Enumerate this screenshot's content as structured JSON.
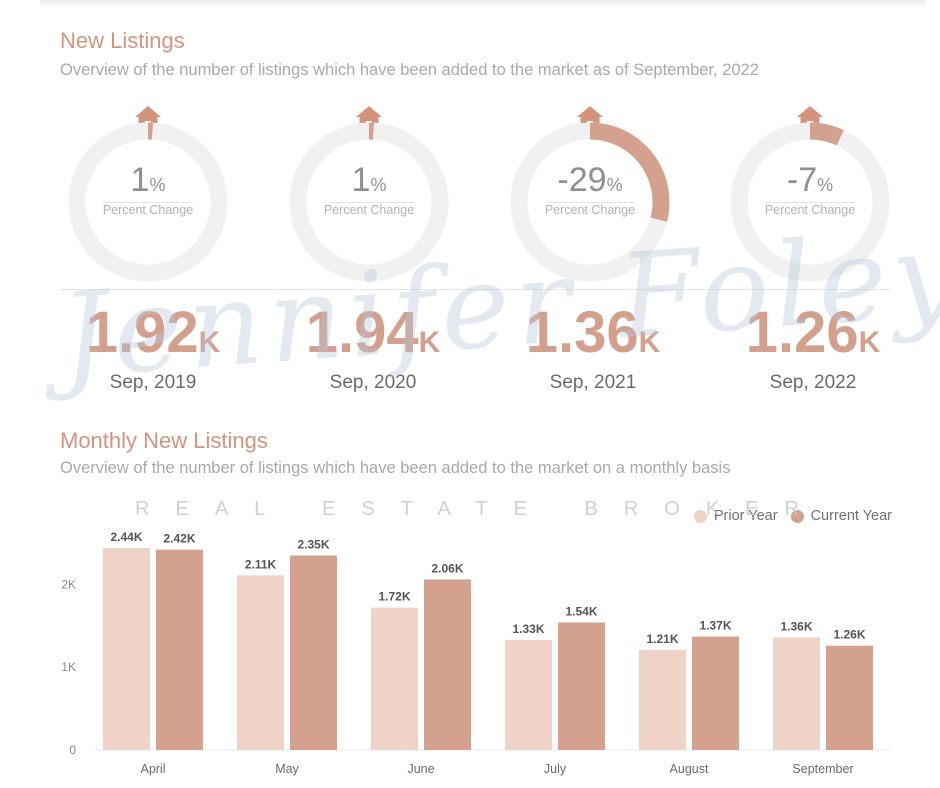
{
  "section1": {
    "title": "New Listings",
    "subtitle": "Overview of the number of listings which have been added to the market as of September, 2022"
  },
  "rings": [
    {
      "value": "1",
      "unit": "%",
      "label": "Percent Change",
      "fraction": 0.01
    },
    {
      "value": "1",
      "unit": "%",
      "label": "Percent Change",
      "fraction": 0.01
    },
    {
      "value": "-29",
      "unit": "%",
      "label": "Percent Change",
      "fraction": 0.29
    },
    {
      "value": "-7",
      "unit": "%",
      "label": "Percent Change",
      "fraction": 0.07
    }
  ],
  "stats": [
    {
      "value": "1.92",
      "unit": "K",
      "date": "Sep, 2019"
    },
    {
      "value": "1.94",
      "unit": "K",
      "date": "Sep, 2020"
    },
    {
      "value": "1.36",
      "unit": "K",
      "date": "Sep, 2021"
    },
    {
      "value": "1.26",
      "unit": "K",
      "date": "Sep, 2022"
    }
  ],
  "watermark": {
    "script": "Jennifer Foley",
    "sub": "REAL ESTATE BROKER"
  },
  "section2": {
    "title": "Monthly New Listings",
    "subtitle": "Overview of the number of listings which have been added to the market on a monthly basis"
  },
  "colors": {
    "accent": "#d4947c",
    "prior": "#efd3c6",
    "current": "#d3a18e",
    "ring_track": "#f1f1f1"
  },
  "chart_data": {
    "type": "bar",
    "categories": [
      "April",
      "May",
      "June",
      "July",
      "August",
      "September"
    ],
    "series": [
      {
        "name": "Prior Year",
        "values": [
          2.44,
          2.11,
          1.72,
          1.33,
          1.21,
          1.36
        ],
        "labels": [
          "2.44K",
          "2.11K",
          "1.72K",
          "1.33K",
          "1.21K",
          "1.36K"
        ]
      },
      {
        "name": "Current Year",
        "values": [
          2.42,
          2.35,
          2.06,
          1.54,
          1.37,
          1.26
        ],
        "labels": [
          "2.42K",
          "2.35K",
          "2.06K",
          "1.54K",
          "1.37K",
          "1.26K"
        ]
      }
    ],
    "y_ticks": [
      {
        "value": 0,
        "label": "0"
      },
      {
        "value": 1,
        "label": "1K"
      },
      {
        "value": 2,
        "label": "2K"
      }
    ],
    "ylim": [
      0,
      2.44
    ],
    "legend": "top-right"
  }
}
